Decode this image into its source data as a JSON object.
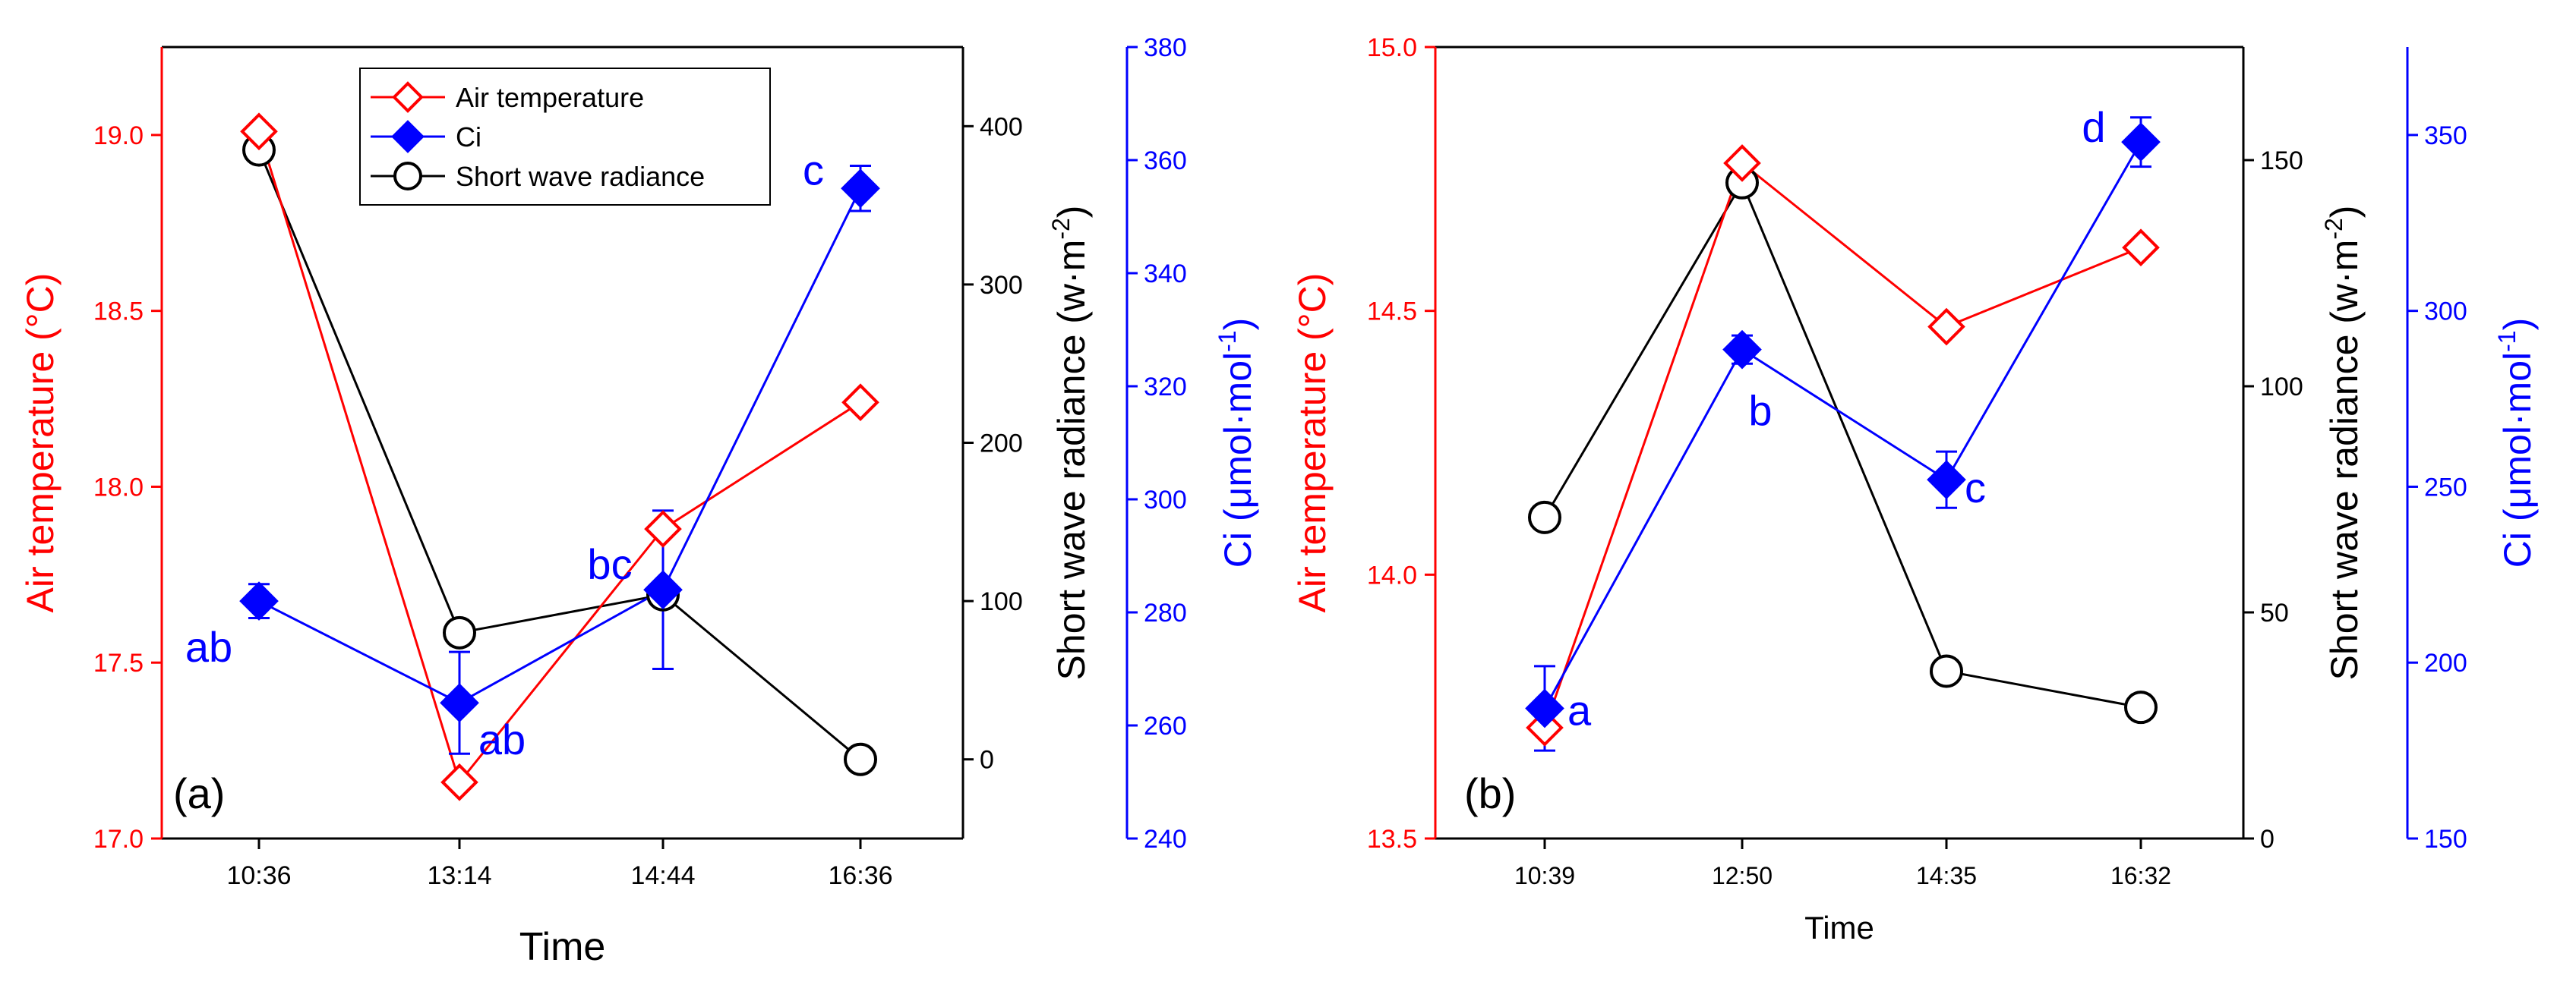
{
  "colors": {
    "temperature": "#ff0000",
    "ci": "#0000ff",
    "radiance": "#000000"
  },
  "chart_data": [
    {
      "type": "line",
      "panel_label": "(a)",
      "xlabel": "Time",
      "categories": [
        "10:36",
        "13:14",
        "14:44",
        "16:36"
      ],
      "legend": {
        "position": "top-center",
        "entries": [
          "Air temperature",
          "Ci",
          "Short wave radiance"
        ]
      },
      "axes": {
        "left": {
          "label": "Air temperature (°C)",
          "ylim": [
            17.0,
            19.25
          ],
          "ticks": [
            "17.0",
            "17.5",
            "18.0",
            "18.5",
            "19.0"
          ],
          "tick_values": [
            17.0,
            17.5,
            18.0,
            18.5,
            19.0
          ]
        },
        "right_inner": {
          "label_main": "Short wave radiance (w·m",
          "label_sup": "-2",
          "label_end": ")",
          "ylim": [
            -50,
            450
          ],
          "ticks": [
            "0",
            "100",
            "200",
            "300",
            "400"
          ],
          "tick_values": [
            0,
            100,
            200,
            300,
            400
          ]
        },
        "right_outer": {
          "label_main": "Ci (μmol·mol",
          "label_sup": "-1",
          "label_end": ")",
          "ylim": [
            240,
            380
          ],
          "ticks": [
            "240",
            "260",
            "280",
            "300",
            "320",
            "340",
            "360",
            "380"
          ],
          "tick_values": [
            240,
            260,
            280,
            300,
            320,
            340,
            360,
            380
          ]
        }
      },
      "series": [
        {
          "name": "Air temperature",
          "axis": "left",
          "values": [
            19.01,
            17.16,
            17.88,
            18.24
          ]
        },
        {
          "name": "Ci",
          "axis": "right_outer",
          "values": [
            282,
            264,
            284,
            355
          ],
          "error": [
            3,
            9,
            14,
            4
          ],
          "letters": [
            "ab",
            "ab",
            "bc",
            "c"
          ]
        },
        {
          "name": "Short wave radiance",
          "axis": "right_inner",
          "values": [
            385,
            80,
            104,
            0
          ]
        }
      ]
    },
    {
      "type": "line",
      "panel_label": "(b)",
      "xlabel": "Time",
      "categories": [
        "10:39",
        "12:50",
        "14:35",
        "16:32"
      ],
      "axes": {
        "left": {
          "label": "Air temperature (°C)",
          "ylim": [
            13.5,
            15.0
          ],
          "ticks": [
            "13.5",
            "14.0",
            "14.5",
            "15.0"
          ],
          "tick_values": [
            13.5,
            14.0,
            14.5,
            15.0
          ]
        },
        "right_inner": {
          "label_main": "Short wave radiance (w·m",
          "label_sup": "-2",
          "label_end": ")",
          "ylim": [
            0,
            175
          ],
          "ticks": [
            "0",
            "50",
            "100",
            "150"
          ],
          "tick_values": [
            0,
            50,
            100,
            150
          ]
        },
        "right_outer": {
          "label_main": "Ci (μmol·mol",
          "label_sup": "-1",
          "label_end": ")",
          "ylim": [
            150,
            375
          ],
          "ticks": [
            "150",
            "200",
            "250",
            "300",
            "350"
          ],
          "tick_values": [
            150,
            200,
            250,
            300,
            350
          ]
        }
      },
      "series": [
        {
          "name": "Air temperature",
          "axis": "left",
          "values": [
            13.71,
            14.78,
            14.47,
            14.62
          ]
        },
        {
          "name": "Ci",
          "axis": "right_outer",
          "values": [
            187,
            289,
            252,
            348
          ],
          "error": [
            12,
            4,
            8,
            7
          ],
          "letters": [
            "a",
            "b",
            "c",
            "d"
          ]
        },
        {
          "name": "Short wave radiance",
          "axis": "right_inner",
          "values": [
            71,
            145,
            37,
            29
          ]
        }
      ]
    }
  ]
}
